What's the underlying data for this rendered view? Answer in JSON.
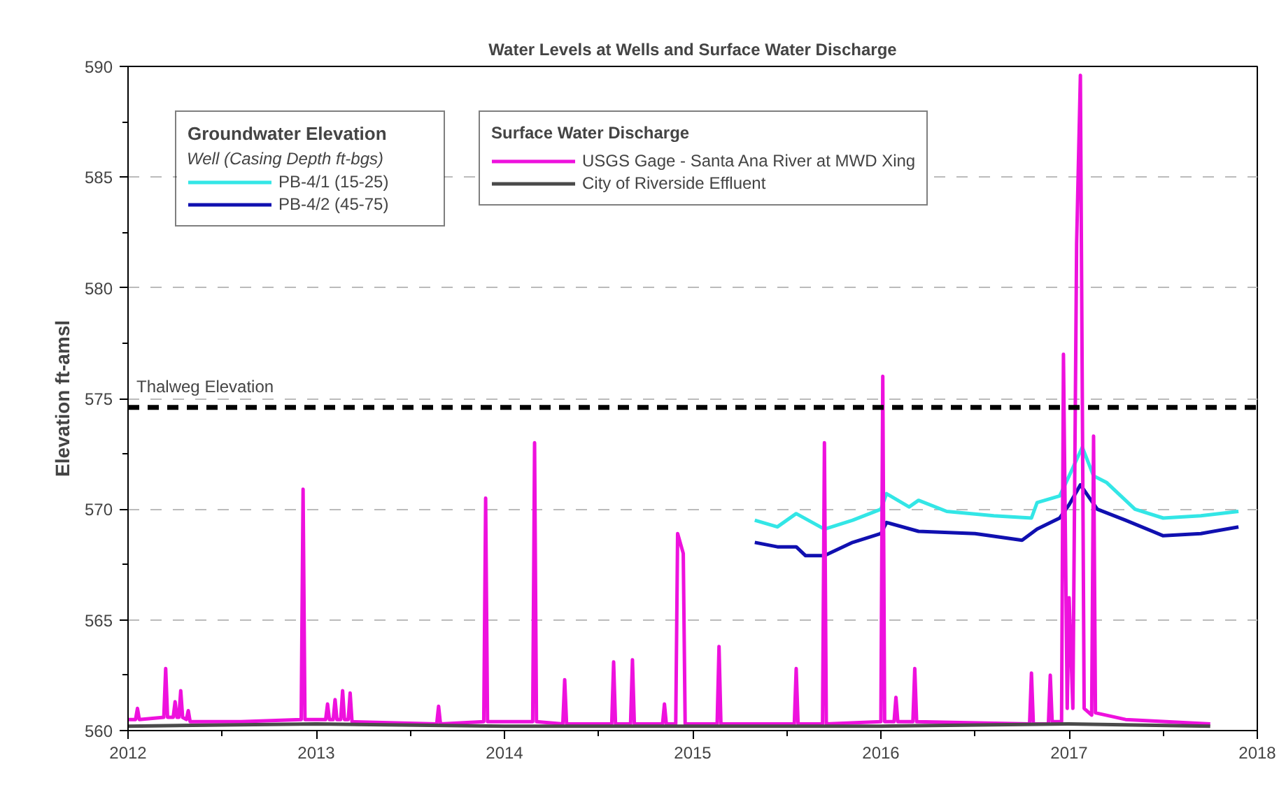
{
  "chart_data": {
    "type": "line",
    "title": "Water Levels at Wells and Surface Water Discharge",
    "ylabel": "Elevation ft-amsl",
    "xlim": [
      2012,
      2018
    ],
    "xticks": [
      2012,
      2013,
      2014,
      2015,
      2016,
      2017,
      2018
    ],
    "ylim": [
      560,
      590
    ],
    "yticks": [
      560,
      565,
      570,
      575,
      580,
      585,
      590
    ],
    "grid": "y",
    "legend": "top left",
    "annotations": [
      "Groundwater Elevation",
      "Well (Casing Depth ft-bgs)",
      "Surface Water Discharge"
    ],
    "ref_lines": [
      {
        "axis": "y",
        "value": 574.6,
        "label": "Thalweg Elevation",
        "color": "#000000",
        "line_style": "dashed"
      }
    ],
    "series": [
      {
        "name": "PB-4/1 (15-25)",
        "color": "#33e6e6",
        "x": [
          2015.33,
          2015.45,
          2015.55,
          2015.7,
          2015.85,
          2016.0,
          2016.03,
          2016.15,
          2016.2,
          2016.35,
          2016.6,
          2016.8,
          2016.83,
          2016.95,
          2017.0,
          2017.07,
          2017.13,
          2017.2,
          2017.35,
          2017.5,
          2017.7,
          2017.9
        ],
        "values": [
          569.5,
          569.2,
          569.8,
          569.1,
          569.5,
          570.0,
          570.7,
          570.1,
          570.4,
          569.9,
          569.7,
          569.6,
          570.3,
          570.6,
          571.5,
          572.8,
          571.5,
          571.2,
          570.0,
          569.6,
          569.7,
          569.9
        ]
      },
      {
        "name": "PB-4/2 (45-75)",
        "color": "#1010b0",
        "x": [
          2015.33,
          2015.45,
          2015.55,
          2015.6,
          2015.7,
          2015.85,
          2016.0,
          2016.03,
          2016.2,
          2016.5,
          2016.75,
          2016.83,
          2016.95,
          2017.0,
          2017.06,
          2017.15,
          2017.3,
          2017.5,
          2017.7,
          2017.9
        ],
        "values": [
          568.5,
          568.3,
          568.3,
          567.9,
          567.9,
          568.5,
          568.9,
          569.4,
          569.0,
          568.9,
          568.6,
          569.1,
          569.6,
          570.2,
          571.1,
          570.0,
          569.5,
          568.8,
          568.9,
          569.2
        ]
      },
      {
        "name": "USGS Gage - Santa Ana River at MWD Xing",
        "color": "#ee11dd",
        "x": [
          2012.0,
          2012.04,
          2012.05,
          2012.06,
          2012.19,
          2012.2,
          2012.21,
          2012.24,
          2012.25,
          2012.26,
          2012.27,
          2012.28,
          2012.29,
          2012.31,
          2012.32,
          2012.33,
          2012.6,
          2012.92,
          2012.93,
          2012.94,
          2013.05,
          2013.06,
          2013.07,
          2013.09,
          2013.1,
          2013.11,
          2013.13,
          2013.14,
          2013.15,
          2013.17,
          2013.18,
          2013.19,
          2013.64,
          2013.65,
          2013.66,
          2013.89,
          2013.9,
          2013.91,
          2014.15,
          2014.16,
          2014.17,
          2014.31,
          2014.32,
          2014.33,
          2014.57,
          2014.58,
          2014.59,
          2014.67,
          2014.68,
          2014.69,
          2014.84,
          2014.85,
          2014.86,
          2014.91,
          2014.92,
          2014.95,
          2014.96,
          2015.13,
          2015.14,
          2015.15,
          2015.54,
          2015.55,
          2015.56,
          2015.69,
          2015.7,
          2015.71,
          2016.0,
          2016.01,
          2016.02,
          2016.07,
          2016.08,
          2016.09,
          2016.17,
          2016.18,
          2016.19,
          2016.79,
          2016.8,
          2016.81,
          2016.89,
          2016.9,
          2016.91,
          2016.96,
          2016.97,
          2016.99,
          2017.0,
          2017.02,
          2017.04,
          2017.06,
          2017.08,
          2017.12,
          2017.13,
          2017.14,
          2017.3,
          2017.75
        ],
        "values": [
          560.5,
          560.5,
          561.0,
          560.5,
          560.6,
          562.8,
          560.6,
          560.6,
          561.3,
          560.6,
          560.6,
          561.8,
          560.6,
          560.5,
          560.9,
          560.4,
          560.4,
          560.5,
          570.9,
          560.5,
          560.5,
          561.2,
          560.5,
          560.5,
          561.4,
          560.5,
          560.5,
          561.8,
          560.5,
          560.5,
          561.7,
          560.4,
          560.3,
          561.1,
          560.3,
          560.4,
          570.5,
          560.4,
          560.4,
          573.0,
          560.4,
          560.3,
          562.3,
          560.3,
          560.3,
          563.1,
          560.3,
          560.3,
          563.2,
          560.3,
          560.3,
          561.2,
          560.3,
          560.3,
          568.9,
          568.0,
          560.3,
          560.3,
          563.8,
          560.3,
          560.3,
          562.8,
          560.3,
          560.3,
          573.0,
          560.3,
          560.4,
          576.0,
          560.4,
          560.4,
          561.5,
          560.4,
          560.4,
          562.8,
          560.4,
          560.3,
          562.6,
          560.3,
          560.3,
          562.5,
          560.4,
          560.4,
          577.0,
          561.0,
          566.0,
          561.0,
          582.0,
          589.6,
          561.0,
          560.7,
          573.3,
          560.8,
          560.5,
          560.3
        ]
      },
      {
        "name": "City of Riverside Effluent",
        "color": "#4a4a4a",
        "x": [
          2012.0,
          2013.0,
          2014.0,
          2015.0,
          2016.0,
          2017.0,
          2017.75
        ],
        "values": [
          560.2,
          560.3,
          560.2,
          560.2,
          560.2,
          560.3,
          560.2
        ]
      }
    ]
  }
}
